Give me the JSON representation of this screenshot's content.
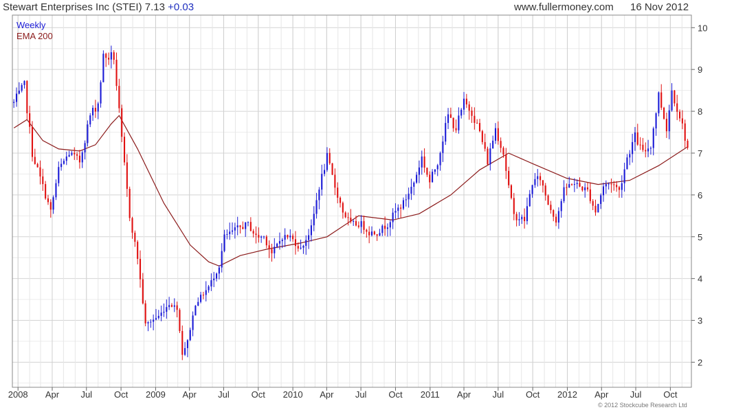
{
  "header": {
    "title": "Stewart Enterprises Inc (STEI) 7.13",
    "change": "+0.03",
    "site": "www.fullermoney.com",
    "date": "16 Nov 2012"
  },
  "copyright": "© 2012 Stockcube Research Ltd",
  "colors": {
    "up": "#1a1ad6",
    "down": "#e01010",
    "ema": "#8b1a1a",
    "grid": "#dcdcdc"
  },
  "chart_data": {
    "type": "candlestick",
    "frequency": "weekly",
    "legend": [
      {
        "label": "Weekly",
        "color": "#1a1ad6"
      },
      {
        "label": "EMA 200",
        "color": "#8b1a1a"
      }
    ],
    "ylim": [
      1.4,
      10.3
    ],
    "yticks": [
      2,
      3,
      4,
      5,
      6,
      7,
      8,
      9,
      10
    ],
    "grid": true,
    "x_range": [
      "2007-12-17",
      "2012-11-26"
    ],
    "xticks": [
      {
        "date": "2008-01-01",
        "label": "2008"
      },
      {
        "date": "2008-04-01",
        "label": "Apr"
      },
      {
        "date": "2008-07-01",
        "label": "Jul"
      },
      {
        "date": "2008-10-01",
        "label": "Oct"
      },
      {
        "date": "2009-01-01",
        "label": "2009"
      },
      {
        "date": "2009-04-01",
        "label": "Apr"
      },
      {
        "date": "2009-07-01",
        "label": "Jul"
      },
      {
        "date": "2009-10-01",
        "label": "Oct"
      },
      {
        "date": "2010-01-01",
        "label": "2010"
      },
      {
        "date": "2010-04-01",
        "label": "Apr"
      },
      {
        "date": "2010-07-01",
        "label": "Jul"
      },
      {
        "date": "2010-10-01",
        "label": "Oct"
      },
      {
        "date": "2011-01-01",
        "label": "2011"
      },
      {
        "date": "2011-04-01",
        "label": "Apr"
      },
      {
        "date": "2011-07-01",
        "label": "Jul"
      },
      {
        "date": "2011-10-01",
        "label": "Oct"
      },
      {
        "date": "2012-01-01",
        "label": "2012"
      },
      {
        "date": "2012-04-01",
        "label": "Apr"
      },
      {
        "date": "2012-07-01",
        "label": "Jul"
      },
      {
        "date": "2012-10-01",
        "label": "Oct"
      }
    ],
    "close_anchors": [
      [
        "2007-12-21",
        8.2
      ],
      [
        "2008-01-18",
        8.6
      ],
      [
        "2008-02-08",
        7.0
      ],
      [
        "2008-03-07",
        6.2
      ],
      [
        "2008-03-28",
        5.6
      ],
      [
        "2008-04-18",
        6.6
      ],
      [
        "2008-05-16",
        7.0
      ],
      [
        "2008-06-13",
        6.8
      ],
      [
        "2008-07-11",
        7.9
      ],
      [
        "2008-08-01",
        8.2
      ],
      [
        "2008-08-15",
        9.3
      ],
      [
        "2008-09-12",
        9.3
      ],
      [
        "2008-10-03",
        7.3
      ],
      [
        "2008-10-24",
        5.5
      ],
      [
        "2008-11-14",
        4.5
      ],
      [
        "2008-12-05",
        2.9
      ],
      [
        "2009-01-09",
        3.1
      ],
      [
        "2009-02-06",
        3.4
      ],
      [
        "2009-02-27",
        3.3
      ],
      [
        "2009-03-13",
        2.2
      ],
      [
        "2009-03-27",
        2.5
      ],
      [
        "2009-04-17",
        3.4
      ],
      [
        "2009-05-22",
        3.8
      ],
      [
        "2009-06-19",
        4.3
      ],
      [
        "2009-07-03",
        5.0
      ],
      [
        "2009-08-07",
        5.2
      ],
      [
        "2009-09-04",
        5.3
      ],
      [
        "2009-09-25",
        5.0
      ],
      [
        "2009-10-16",
        5.0
      ],
      [
        "2009-11-06",
        4.6
      ],
      [
        "2009-12-04",
        5.0
      ],
      [
        "2009-12-25",
        5.0
      ],
      [
        "2010-01-22",
        4.7
      ],
      [
        "2010-02-19",
        5.2
      ],
      [
        "2010-03-12",
        6.2
      ],
      [
        "2010-04-02",
        6.9
      ],
      [
        "2010-04-23",
        6.2
      ],
      [
        "2010-05-14",
        5.6
      ],
      [
        "2010-06-04",
        5.3
      ],
      [
        "2010-07-02",
        5.3
      ],
      [
        "2010-07-23",
        5.1
      ],
      [
        "2010-08-13",
        5.1
      ],
      [
        "2010-09-10",
        5.3
      ],
      [
        "2010-10-01",
        5.6
      ],
      [
        "2010-10-22",
        5.8
      ],
      [
        "2010-11-19",
        6.3
      ],
      [
        "2010-12-10",
        6.9
      ],
      [
        "2010-12-31",
        6.3
      ],
      [
        "2011-01-21",
        6.8
      ],
      [
        "2011-02-18",
        7.9
      ],
      [
        "2011-03-11",
        7.6
      ],
      [
        "2011-04-01",
        8.2
      ],
      [
        "2011-04-22",
        8.0
      ],
      [
        "2011-05-13",
        7.5
      ],
      [
        "2011-06-03",
        6.8
      ],
      [
        "2011-06-24",
        7.6
      ],
      [
        "2011-07-15",
        7.0
      ],
      [
        "2011-07-29",
        6.2
      ],
      [
        "2011-08-12",
        5.5
      ],
      [
        "2011-09-09",
        5.4
      ],
      [
        "2011-09-30",
        6.3
      ],
      [
        "2011-10-21",
        6.4
      ],
      [
        "2011-11-11",
        5.8
      ],
      [
        "2011-12-02",
        5.4
      ],
      [
        "2011-12-23",
        6.1
      ],
      [
        "2012-01-13",
        6.3
      ],
      [
        "2012-02-03",
        6.2
      ],
      [
        "2012-02-24",
        6.1
      ],
      [
        "2012-03-16",
        5.6
      ],
      [
        "2012-04-06",
        6.2
      ],
      [
        "2012-04-27",
        6.3
      ],
      [
        "2012-05-18",
        6.1
      ],
      [
        "2012-06-08",
        6.9
      ],
      [
        "2012-06-29",
        7.4
      ],
      [
        "2012-07-20",
        7.0
      ],
      [
        "2012-08-10",
        7.2
      ],
      [
        "2012-08-31",
        8.4
      ],
      [
        "2012-09-21",
        7.6
      ],
      [
        "2012-10-05",
        8.5
      ],
      [
        "2012-10-26",
        7.9
      ],
      [
        "2012-11-16",
        7.13
      ]
    ],
    "ema_200": [
      [
        "2007-12-21",
        7.6
      ],
      [
        "2008-01-25",
        7.8
      ],
      [
        "2008-03-07",
        7.3
      ],
      [
        "2008-04-18",
        7.1
      ],
      [
        "2008-06-13",
        7.05
      ],
      [
        "2008-07-25",
        7.2
      ],
      [
        "2008-09-05",
        7.7
      ],
      [
        "2008-09-26",
        7.9
      ],
      [
        "2008-11-14",
        7.1
      ],
      [
        "2009-01-23",
        5.8
      ],
      [
        "2009-04-03",
        4.8
      ],
      [
        "2009-05-22",
        4.4
      ],
      [
        "2009-06-19",
        4.3
      ],
      [
        "2009-08-14",
        4.55
      ],
      [
        "2009-10-23",
        4.7
      ],
      [
        "2010-01-22",
        4.85
      ],
      [
        "2010-04-02",
        5.0
      ],
      [
        "2010-06-25",
        5.5
      ],
      [
        "2010-09-24",
        5.4
      ],
      [
        "2010-12-03",
        5.55
      ],
      [
        "2011-02-25",
        6.0
      ],
      [
        "2011-05-13",
        6.6
      ],
      [
        "2011-07-29",
        7.0
      ],
      [
        "2011-09-30",
        6.75
      ],
      [
        "2011-12-30",
        6.4
      ],
      [
        "2012-03-23",
        6.25
      ],
      [
        "2012-06-15",
        6.35
      ],
      [
        "2012-08-31",
        6.7
      ],
      [
        "2012-11-16",
        7.15
      ]
    ]
  }
}
